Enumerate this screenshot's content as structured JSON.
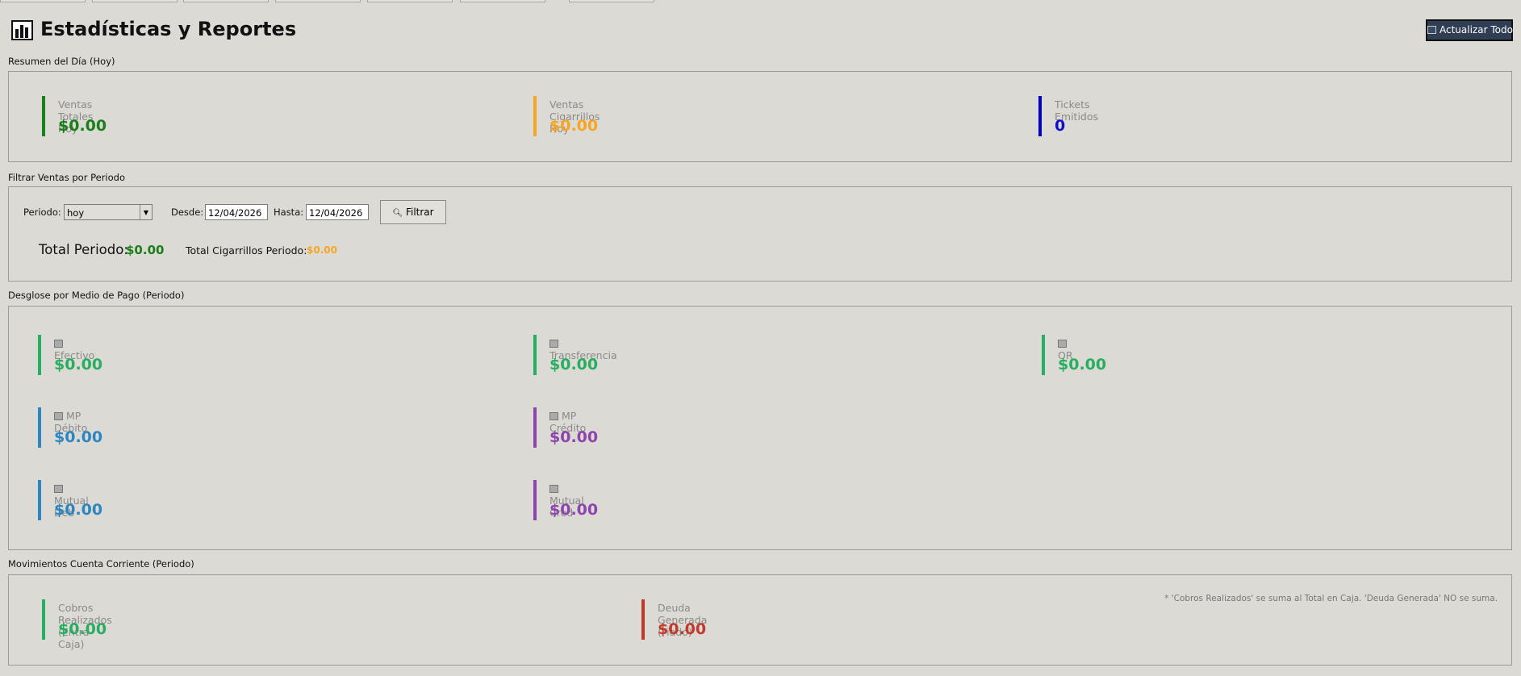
{
  "header": {
    "title": "Estadísticas y Reportes",
    "refresh_button": "Actualizar Todo"
  },
  "daily_summary": {
    "title": "Resumen del Día (Hoy)",
    "cards": [
      {
        "label": "Ventas Totales Hoy",
        "value": "$0.00"
      },
      {
        "label": "Ventas Cigarrillos Hoy",
        "value": "$0.00"
      },
      {
        "label": "Tickets Emitidos",
        "value": "0"
      }
    ]
  },
  "filter": {
    "title": "Filtrar Ventas por Periodo",
    "period_label": "Periodo:",
    "period_value": "hoy",
    "from_label": "Desde:",
    "from_value": "12/04/2026",
    "to_label": "Hasta:",
    "to_value": "12/04/2026",
    "button": "Filtrar",
    "total_label": "Total Periodo:",
    "total_value": "$0.00",
    "cigarettes_label": "Total Cigarrillos Periodo:",
    "cigarettes_value": "$0.00"
  },
  "payment_breakdown": {
    "title": "Desglose por Medio de Pago (Periodo)",
    "cards": [
      {
        "label": "Efectivo",
        "value": "$0.00"
      },
      {
        "label": "Transferencia",
        "value": "$0.00"
      },
      {
        "label": "QR",
        "value": "$0.00"
      },
      {
        "label": "MP Débito",
        "value": "$0.00"
      },
      {
        "label": "MP Crédito",
        "value": "$0.00"
      },
      {
        "label": "Mutual Deb",
        "value": "$0.00"
      },
      {
        "label": "Mutual Cred",
        "value": "$0.00"
      }
    ]
  },
  "account_movements": {
    "title": "Movimientos Cuenta Corriente (Periodo)",
    "cards": [
      {
        "label": "Cobros Realizados (Entra Caja)",
        "value": "$0.00"
      },
      {
        "label": "Deuda Generada (Fiado)",
        "value": "$0.00"
      }
    ],
    "note": "* 'Cobros Realizados' se suma al Total en Caja. 'Deuda Generada' NO se suma."
  }
}
